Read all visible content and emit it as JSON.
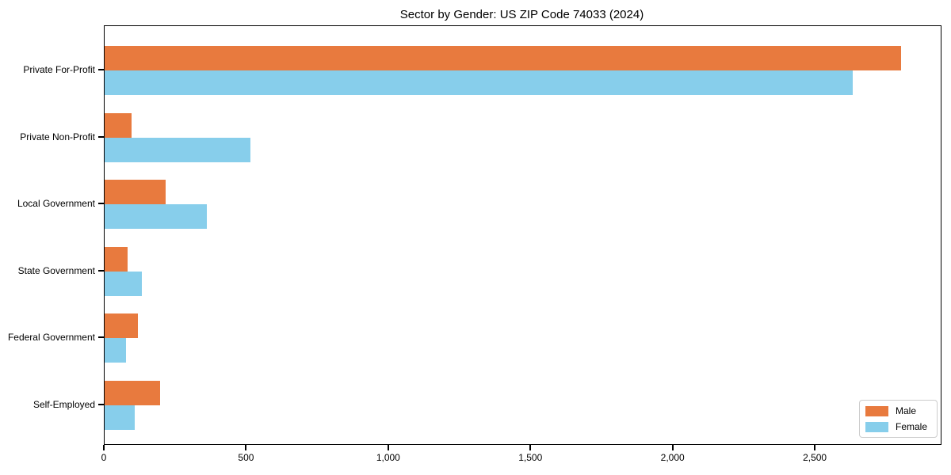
{
  "page": {
    "title": "Sector by Gender: US ZIP Code 74033 (2024)"
  },
  "chart_data": {
    "type": "bar",
    "orientation": "horizontal",
    "title": "Sector by Gender: US ZIP Code 74033 (2024)",
    "categories": [
      "Private For-Profit",
      "Private Non-Profit",
      "Local Government",
      "State Government",
      "Federal Government",
      "Self-Employed"
    ],
    "series": [
      {
        "name": "Male",
        "color": "#e87a3e",
        "values": [
          2800,
          95,
          215,
          80,
          118,
          195
        ]
      },
      {
        "name": "Female",
        "color": "#87ceeb",
        "values": [
          2630,
          513,
          360,
          130,
          76,
          106
        ]
      }
    ],
    "xlabel": "",
    "ylabel": "",
    "x_ticks": [
      0,
      500,
      1000,
      1500,
      2000,
      2500
    ],
    "x_tick_labels": [
      "0",
      "500",
      "1,000",
      "1,500",
      "2,000",
      "2,500"
    ],
    "xlim": [
      0,
      2940
    ],
    "grid": false,
    "legend_position": "lower right",
    "background_color": "#ffffff",
    "spine_color": "#000000"
  }
}
